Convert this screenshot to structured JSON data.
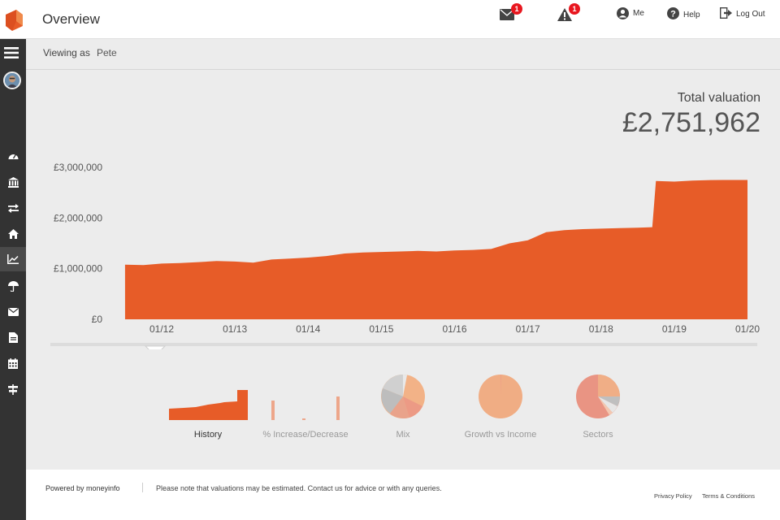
{
  "header": {
    "title": "Overview",
    "messages_badge": "1",
    "alerts_badge": "1",
    "me_label": "Me",
    "help_label": "Help",
    "logout_label": "Log Out"
  },
  "viewing": {
    "label": "Viewing as",
    "name": "Pete"
  },
  "valuation": {
    "label": "Total valuation",
    "amount": "£2,751,962"
  },
  "sidebar": {
    "icons": [
      "menu-icon",
      "avatar",
      "dashboard-icon",
      "bank-icon",
      "transfer-icon",
      "home-icon",
      "chart-icon",
      "umbrella-icon",
      "mail-icon",
      "document-icon",
      "calendar-icon",
      "signpost-icon"
    ],
    "active": "chart-icon"
  },
  "chart_data": {
    "type": "area",
    "y_tick_labels": [
      "£3,000,000",
      "£2,000,000",
      "£1,000,000",
      "£0"
    ],
    "y_ticks": [
      3000000,
      2000000,
      1000000,
      0
    ],
    "ylim": [
      0,
      3000000
    ],
    "x_tick_labels": [
      "01/12",
      "01/13",
      "01/14",
      "01/15",
      "01/16",
      "01/17",
      "01/18",
      "01/19",
      "01/20"
    ],
    "color": "#e75c28",
    "series": [
      {
        "x": [
          2011.5,
          2011.75,
          2012.0,
          2012.25,
          2012.5,
          2012.75,
          2013.0,
          2013.25,
          2013.5,
          2013.75,
          2014.0,
          2014.25,
          2014.5,
          2014.75,
          2015.0,
          2015.25,
          2015.5,
          2015.75,
          2016.0,
          2016.25,
          2016.5,
          2016.75,
          2017.0,
          2017.25,
          2017.5,
          2017.75,
          2018.0,
          2018.25,
          2018.5,
          2018.7,
          2018.75,
          2019.0,
          2019.25,
          2019.5,
          2019.75,
          2020.0
        ],
        "values": [
          1080000,
          1070000,
          1100000,
          1110000,
          1130000,
          1150000,
          1140000,
          1120000,
          1180000,
          1200000,
          1220000,
          1250000,
          1300000,
          1320000,
          1330000,
          1340000,
          1350000,
          1340000,
          1360000,
          1370000,
          1390000,
          1500000,
          1560000,
          1720000,
          1760000,
          1780000,
          1790000,
          1800000,
          1810000,
          1820000,
          2730000,
          2720000,
          2740000,
          2750000,
          2752000,
          2751962
        ]
      }
    ]
  },
  "tiles": [
    {
      "label": "History",
      "active": true
    },
    {
      "label": "% Increase/Decrease",
      "active": false
    },
    {
      "label": "Mix",
      "active": false
    },
    {
      "label": "Growth vs Income",
      "active": false
    },
    {
      "label": "Sectors",
      "active": false
    }
  ],
  "footer": {
    "powered": "Powered by moneyinfo",
    "note": "Please note that valuations may be estimated. Contact us for advice or with any queries.",
    "privacy": "Privacy Policy",
    "terms": "Terms & Conditions"
  }
}
